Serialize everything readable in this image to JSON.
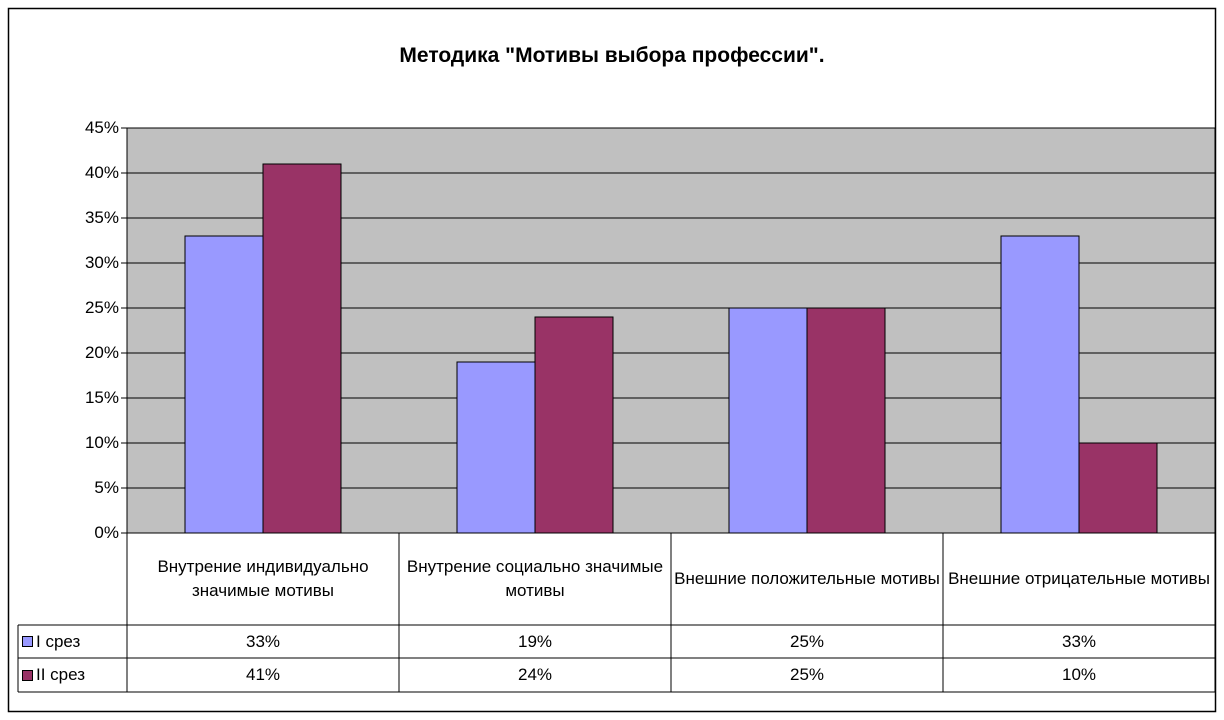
{
  "chart_data": {
    "type": "bar",
    "title": "Методика \"Мотивы выбора профессии\".",
    "categories": [
      "Внутрение индивидуально значимые мотивы",
      "Внутрение социально значимые мотивы",
      "Внешние положительные мотивы",
      "Внешние отрицательные мотивы"
    ],
    "series": [
      {
        "name": "I срез",
        "color": "#9999ff",
        "values": [
          33,
          19,
          25,
          33
        ],
        "value_labels": [
          "33%",
          "19%",
          "25%",
          "33%"
        ]
      },
      {
        "name": "II срез",
        "color": "#993366",
        "values": [
          41,
          24,
          25,
          10
        ],
        "value_labels": [
          "41%",
          "24%",
          "25%",
          "10%"
        ]
      }
    ],
    "ylim": [
      0,
      45
    ],
    "yticks": [
      {
        "value": 0,
        "label": "0%"
      },
      {
        "value": 5,
        "label": "5%"
      },
      {
        "value": 10,
        "label": "10%"
      },
      {
        "value": 15,
        "label": "15%"
      },
      {
        "value": 20,
        "label": "20%"
      },
      {
        "value": 25,
        "label": "25%"
      },
      {
        "value": 30,
        "label": "30%"
      },
      {
        "value": 35,
        "label": "35%"
      },
      {
        "value": 40,
        "label": "40%"
      },
      {
        "value": 45,
        "label": "45%"
      }
    ],
    "grid": true,
    "plot_background": "#c0c0c0"
  }
}
